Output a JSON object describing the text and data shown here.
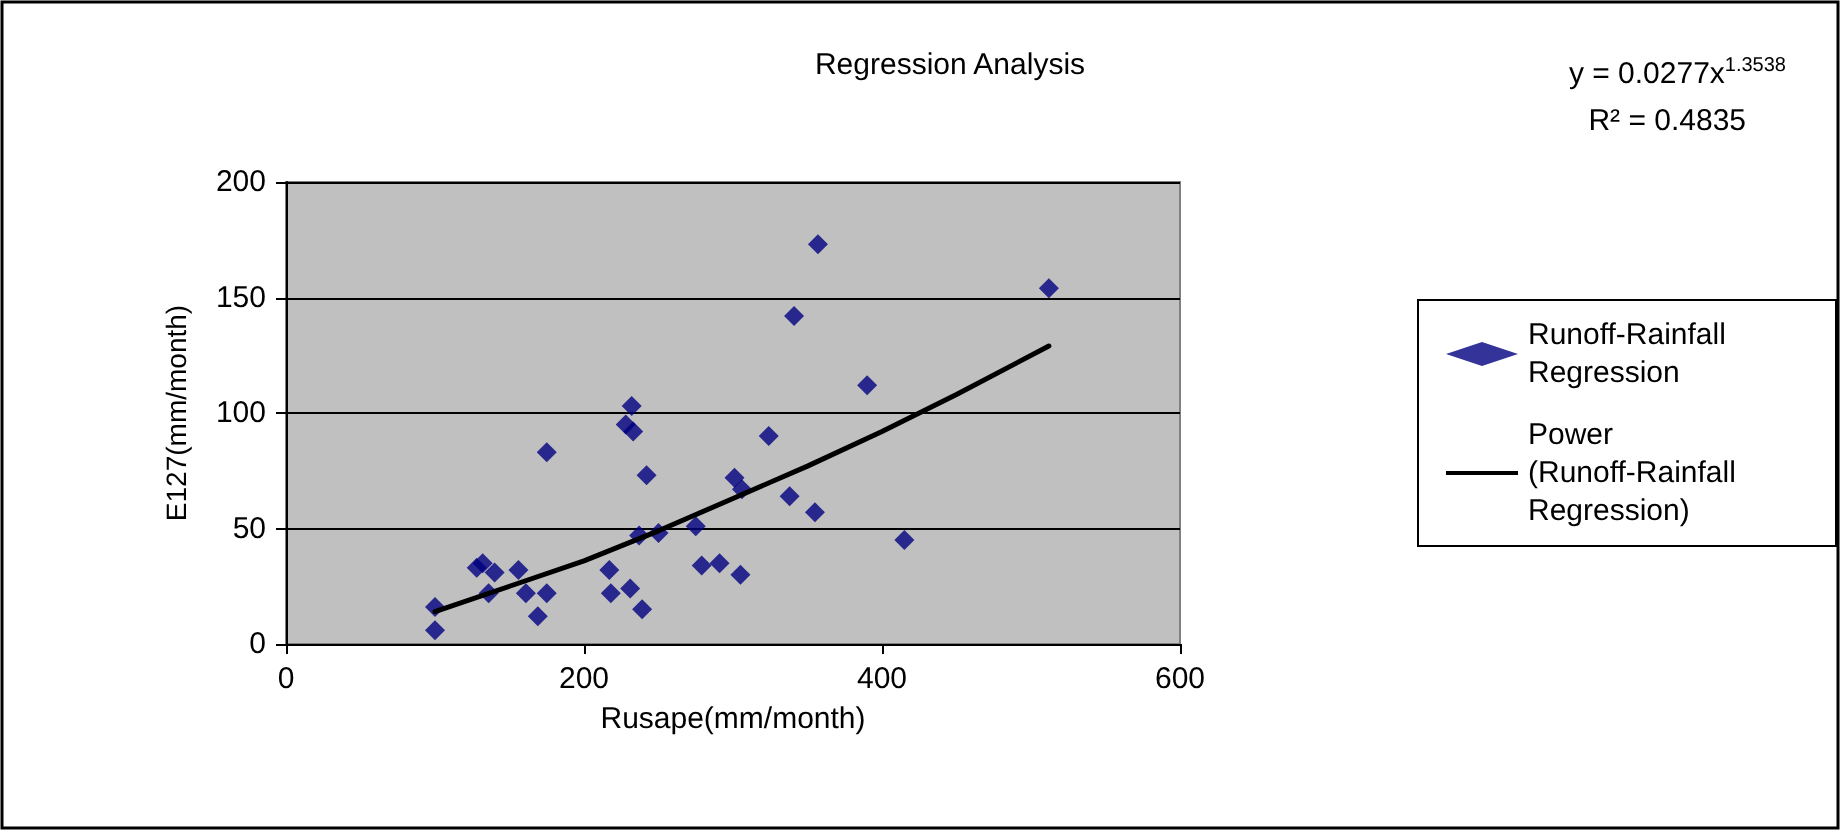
{
  "chart_data": {
    "type": "scatter",
    "title": "Regression Analysis",
    "xlabel": "Rusape(mm/month)",
    "ylabel": "E127(mm/month)",
    "xlim": [
      0,
      600
    ],
    "xticks": [
      0,
      200,
      400,
      600
    ],
    "ylim": [
      0,
      200
    ],
    "yticks": [
      0,
      50,
      100,
      150,
      200
    ],
    "grid": "y",
    "legend": "right",
    "annotations": [
      "y = 0.0277x$^{1.3538}$",
      "R² = 0.4835"
    ],
    "series": [
      {
        "name": "Runoff-Rainfall Regression",
        "marker": "diamond",
        "color": "#000080",
        "x": [
          100,
          100,
          128,
          132,
          140,
          136,
          156,
          161,
          175,
          169,
          175,
          217,
          218,
          231,
          239,
          232,
          228,
          233,
          242,
          237,
          250,
          275,
          279,
          291,
          305,
          301,
          303,
          306,
          324,
          338,
          355,
          341,
          357,
          390,
          415,
          512
        ],
        "values": [
          6,
          16,
          33,
          35,
          31,
          22,
          32,
          22,
          22,
          12,
          83,
          32,
          22,
          24,
          15,
          103,
          95,
          92,
          73,
          47,
          48,
          51,
          34,
          35,
          30,
          72,
          null,
          67,
          90,
          64,
          57,
          142,
          173,
          112,
          45,
          154
        ]
      },
      {
        "name": "Power (Runoff-Rainfall Regression)",
        "type": "line",
        "marker": "none",
        "line_style": "solid",
        "color": "#000000",
        "x": [
          100,
          150,
          200,
          250,
          300,
          350,
          400,
          450,
          512
        ],
        "values": [
          14,
          25,
          36,
          49,
          63,
          77,
          92,
          108,
          129
        ]
      }
    ]
  }
}
